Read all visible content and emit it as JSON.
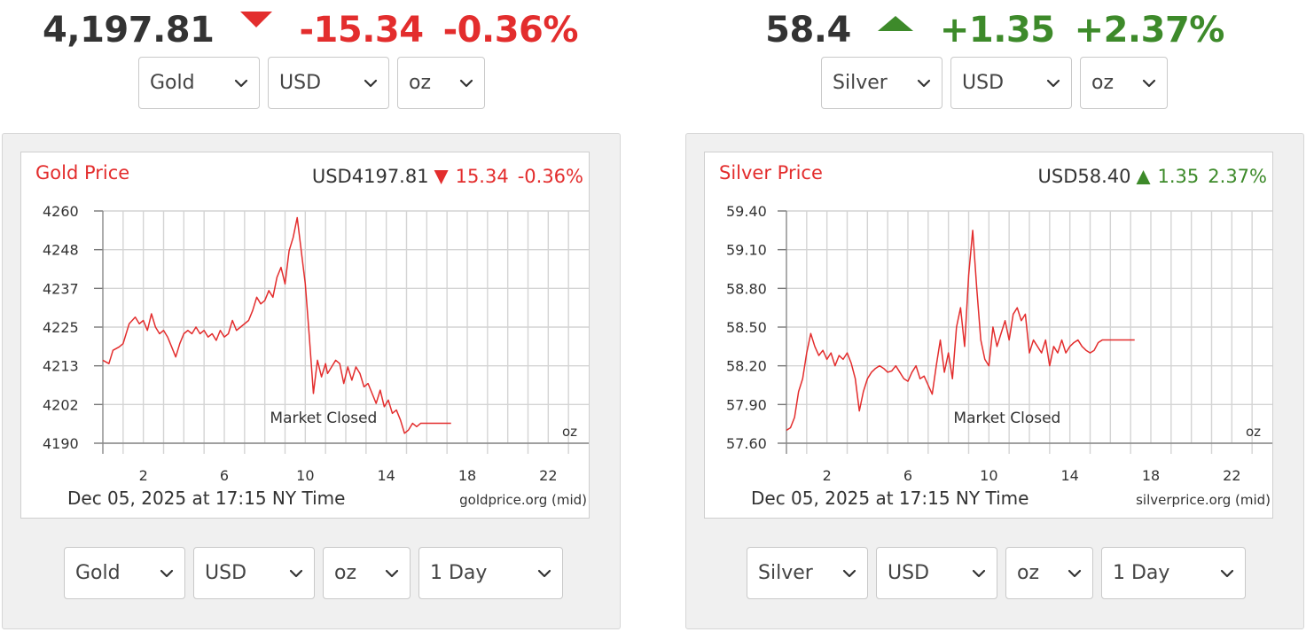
{
  "gold": {
    "headline": {
      "price": "4,197.81",
      "change": "-15.34",
      "percent": "-0.36%",
      "direction": "down"
    },
    "top_selects": [
      {
        "name": "metal-select",
        "value": "Gold",
        "w": 137
      },
      {
        "name": "currency-select",
        "value": "USD",
        "w": 137
      },
      {
        "name": "unit-select",
        "value": "oz",
        "w": 99
      }
    ],
    "bottom_selects": [
      {
        "name": "metal-select",
        "value": "Gold",
        "w": 137
      },
      {
        "name": "currency-select",
        "value": "USD",
        "w": 137
      },
      {
        "name": "unit-select",
        "value": "oz",
        "w": 99
      },
      {
        "name": "period-select",
        "value": "1 Day",
        "w": 163
      }
    ],
    "chart_data": {
      "type": "line",
      "title": "Gold Price",
      "quote": {
        "price": "USD4197.81",
        "change": "15.34",
        "percent": "-0.36%",
        "direction": "down"
      },
      "annotation": "Market Closed",
      "unit_label": "oz",
      "timestamp": "Dec 05, 2025 at 17:15 NY Time",
      "source": "goldprice.org (mid)",
      "xlim": [
        0,
        24
      ],
      "x_ticks": [
        2,
        6,
        10,
        14,
        18,
        22
      ],
      "x_tick_labels": [
        "2",
        "6",
        "10",
        "14",
        "18",
        "22"
      ],
      "ylim": [
        4190,
        4260
      ],
      "y_ticks": [
        4190,
        4201.67,
        4213.33,
        4225,
        4236.67,
        4248.33,
        4260
      ],
      "y_tick_labels": [
        "4190",
        "4202",
        "4213",
        "4225",
        "4237",
        "4248",
        "4260"
      ],
      "grid": true,
      "line_color": "#e32d2d",
      "title_color": "#e32d2d",
      "series": [
        {
          "x": [
            0.0,
            0.3,
            0.5,
            0.8,
            1.0,
            1.3,
            1.6,
            1.8,
            2.0,
            2.2,
            2.4,
            2.6,
            2.8,
            3.0,
            3.2,
            3.4,
            3.6,
            3.8,
            4.0,
            4.2,
            4.4,
            4.6,
            4.8,
            5.0,
            5.2,
            5.4,
            5.6,
            5.8,
            6.0,
            6.2,
            6.4,
            6.6,
            6.8,
            7.0,
            7.2,
            7.4,
            7.6,
            7.8,
            8.0,
            8.2,
            8.4,
            8.6,
            8.8,
            9.0,
            9.2,
            9.4,
            9.6,
            9.8,
            10.0,
            10.2,
            10.4,
            10.6,
            10.8,
            11.0,
            11.1,
            11.3,
            11.5,
            11.7,
            11.9,
            12.1,
            12.3,
            12.5,
            12.7,
            12.9,
            13.1,
            13.3,
            13.5,
            13.7,
            13.9,
            14.1,
            14.3,
            14.5,
            14.7,
            14.9,
            15.1,
            15.3,
            15.5,
            15.7,
            15.9,
            16.1,
            16.3,
            16.5,
            16.7,
            16.9,
            17.0
          ],
          "values": [
            4215,
            4214,
            4218,
            4219,
            4220,
            4226,
            4228,
            4226,
            4227,
            4224,
            4229,
            4225,
            4223,
            4224,
            4222,
            4219,
            4216,
            4220,
            4223,
            4224,
            4223,
            4225,
            4223,
            4224,
            4222,
            4223,
            4221,
            4224,
            4222,
            4223,
            4227,
            4224,
            4225,
            4226,
            4227,
            4230,
            4234,
            4232,
            4233,
            4236,
            4234,
            4240,
            4243,
            4238,
            4248,
            4252,
            4258,
            4248,
            4238,
            4222,
            4205,
            4215,
            4210,
            4214,
            4211,
            4213,
            4215,
            4214,
            4208,
            4213,
            4209,
            4213,
            4211,
            4207,
            4208,
            4205,
            4202,
            4206,
            4201,
            4203,
            4199,
            4200,
            4197,
            4193,
            4194,
            4196,
            4195,
            4196,
            4196,
            4196,
            4196,
            4196,
            4196,
            4196,
            4196
          ],
          "end_x": 17.2
        }
      ]
    }
  },
  "silver": {
    "headline": {
      "price": "58.4",
      "change": "+1.35",
      "percent": "+2.37%",
      "direction": "up"
    },
    "top_selects": [
      {
        "name": "metal-select",
        "value": "Silver",
        "w": 137
      },
      {
        "name": "currency-select",
        "value": "USD",
        "w": 137
      },
      {
        "name": "unit-select",
        "value": "oz",
        "w": 99
      }
    ],
    "bottom_selects": [
      {
        "name": "metal-select",
        "value": "Silver",
        "w": 137
      },
      {
        "name": "currency-select",
        "value": "USD",
        "w": 137
      },
      {
        "name": "unit-select",
        "value": "oz",
        "w": 99
      },
      {
        "name": "period-select",
        "value": "1 Day",
        "w": 163
      }
    ],
    "chart_data": {
      "type": "line",
      "title": "Silver Price",
      "quote": {
        "price": "USD58.40",
        "change": "1.35",
        "percent": "2.37%",
        "direction": "up"
      },
      "annotation": "Market Closed",
      "unit_label": "oz",
      "timestamp": "Dec 05, 2025 at 17:15 NY Time",
      "source": "silverprice.org (mid)",
      "xlim": [
        0,
        24
      ],
      "x_ticks": [
        2,
        6,
        10,
        14,
        18,
        22
      ],
      "x_tick_labels": [
        "2",
        "6",
        "10",
        "14",
        "18",
        "22"
      ],
      "ylim": [
        57.6,
        59.4
      ],
      "y_ticks": [
        57.6,
        57.9,
        58.2,
        58.5,
        58.8,
        59.1,
        59.4
      ],
      "y_tick_labels": [
        "57.60",
        "57.90",
        "58.20",
        "58.50",
        "58.80",
        "59.10",
        "59.40"
      ],
      "grid": true,
      "line_color": "#e32d2d",
      "title_color": "#e32d2d",
      "series": [
        {
          "x": [
            0.0,
            0.2,
            0.4,
            0.6,
            0.8,
            1.0,
            1.2,
            1.4,
            1.6,
            1.8,
            2.0,
            2.2,
            2.4,
            2.6,
            2.8,
            3.0,
            3.2,
            3.4,
            3.6,
            3.8,
            4.0,
            4.2,
            4.4,
            4.6,
            4.8,
            5.0,
            5.2,
            5.4,
            5.6,
            5.8,
            6.0,
            6.2,
            6.4,
            6.6,
            6.8,
            7.0,
            7.2,
            7.4,
            7.6,
            7.8,
            8.0,
            8.2,
            8.4,
            8.6,
            8.8,
            9.0,
            9.2,
            9.4,
            9.6,
            9.8,
            10.0,
            10.2,
            10.4,
            10.6,
            10.8,
            11.0,
            11.2,
            11.4,
            11.6,
            11.8,
            12.0,
            12.2,
            12.4,
            12.6,
            12.8,
            13.0,
            13.2,
            13.4,
            13.6,
            13.8,
            14.0,
            14.2,
            14.4,
            14.6,
            14.8,
            15.0,
            15.2,
            15.4,
            15.6,
            15.8,
            16.0,
            16.2,
            16.4,
            16.6,
            16.8,
            17.0
          ],
          "values": [
            57.7,
            57.72,
            57.8,
            58.0,
            58.1,
            58.3,
            58.45,
            58.35,
            58.28,
            58.32,
            58.25,
            58.3,
            58.2,
            58.28,
            58.25,
            58.3,
            58.22,
            58.1,
            57.85,
            58.0,
            58.1,
            58.15,
            58.18,
            58.2,
            58.18,
            58.15,
            58.16,
            58.2,
            58.15,
            58.1,
            58.08,
            58.15,
            58.2,
            58.1,
            58.12,
            58.05,
            57.98,
            58.2,
            58.4,
            58.15,
            58.3,
            58.1,
            58.5,
            58.65,
            58.35,
            58.9,
            59.25,
            58.8,
            58.4,
            58.25,
            58.2,
            58.5,
            58.35,
            58.45,
            58.55,
            58.4,
            58.6,
            58.65,
            58.55,
            58.6,
            58.3,
            58.4,
            58.35,
            58.3,
            58.4,
            58.2,
            58.35,
            58.3,
            58.4,
            58.3,
            58.35,
            58.38,
            58.4,
            58.35,
            58.32,
            58.3,
            58.32,
            58.38,
            58.4,
            58.4,
            58.4,
            58.4,
            58.4,
            58.4,
            58.4,
            58.4
          ],
          "end_x": 17.2
        }
      ]
    }
  }
}
